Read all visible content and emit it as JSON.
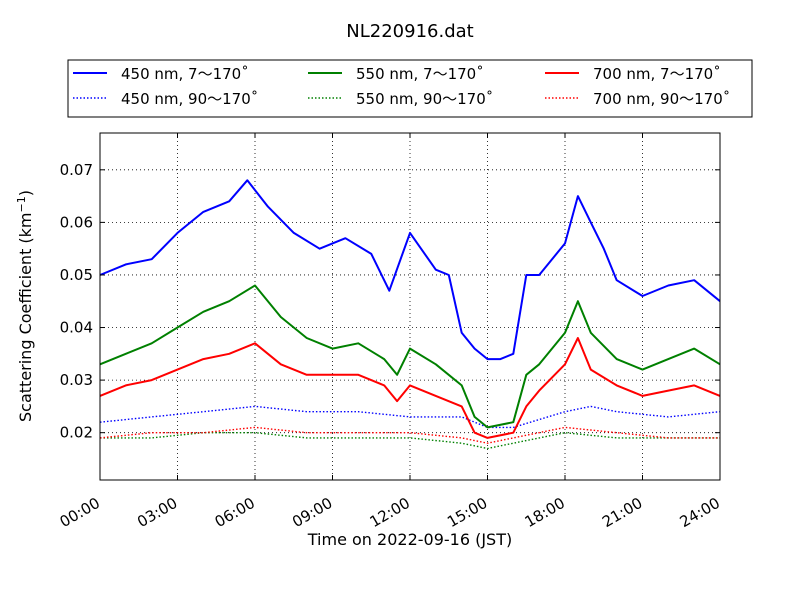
{
  "chart_data": {
    "type": "line",
    "title": "NL220916.dat",
    "xlabel": "Time on 2022-09-16 (JST)",
    "ylabel": {
      "main": "Scattering Coefficient (km",
      "sup": "−1",
      "end": ")"
    },
    "xlim": [
      "2022-09-16 00:00",
      "2022-09-17 00:00"
    ],
    "ylim": [
      0.011,
      0.077
    ],
    "x_unit": "hours since 00:00 JST",
    "x_tick_hours": [
      0,
      3,
      6,
      9,
      12,
      15,
      18,
      21,
      24
    ],
    "x_ticks": [
      "00:00",
      "03:00",
      "06:00",
      "09:00",
      "12:00",
      "15:00",
      "18:00",
      "21:00",
      "24:00"
    ],
    "y_ticks": [
      0.02,
      0.03,
      0.04,
      0.05,
      0.06,
      0.07
    ],
    "y_tick_labels": [
      "0.02",
      "0.03",
      "0.04",
      "0.05",
      "0.06",
      "0.07"
    ],
    "grid": true,
    "legend_position": "top, above plot",
    "series": [
      {
        "name": "450 nm, 7～170˚",
        "color": "#0000ff",
        "style": "solid",
        "x": [
          0,
          1,
          2,
          3,
          4,
          5,
          5.7,
          6.5,
          7.5,
          8.5,
          9.5,
          10.5,
          11.2,
          12,
          13,
          13.5,
          14,
          14.5,
          15,
          15.5,
          16,
          16.5,
          17,
          18,
          18.5,
          19,
          19.5,
          20,
          21,
          22,
          23,
          24
        ],
        "y": [
          0.05,
          0.052,
          0.053,
          0.058,
          0.062,
          0.064,
          0.068,
          0.063,
          0.058,
          0.055,
          0.057,
          0.054,
          0.047,
          0.058,
          0.051,
          0.05,
          0.039,
          0.036,
          0.034,
          0.034,
          0.035,
          0.05,
          0.05,
          0.056,
          0.065,
          0.06,
          0.055,
          0.049,
          0.046,
          0.048,
          0.049,
          0.045
        ]
      },
      {
        "name": "550 nm, 7～170˚",
        "color": "#008000",
        "style": "solid",
        "x": [
          0,
          1,
          2,
          3,
          4,
          5,
          6,
          7,
          8,
          9,
          10,
          11,
          11.5,
          12,
          13,
          14,
          14.5,
          15,
          16,
          16.5,
          17,
          18,
          18.5,
          19,
          20,
          21,
          22,
          23,
          24
        ],
        "y": [
          0.033,
          0.035,
          0.037,
          0.04,
          0.043,
          0.045,
          0.048,
          0.042,
          0.038,
          0.036,
          0.037,
          0.034,
          0.031,
          0.036,
          0.033,
          0.029,
          0.023,
          0.021,
          0.022,
          0.031,
          0.033,
          0.039,
          0.045,
          0.039,
          0.034,
          0.032,
          0.034,
          0.036,
          0.033
        ]
      },
      {
        "name": "700 nm, 7～170˚",
        "color": "#ff0000",
        "style": "solid",
        "x": [
          0,
          1,
          2,
          3,
          4,
          5,
          6,
          7,
          8,
          9,
          10,
          11,
          11.5,
          12,
          13,
          14,
          14.5,
          15,
          16,
          16.5,
          17,
          18,
          18.5,
          19,
          20,
          21,
          22,
          23,
          24
        ],
        "y": [
          0.027,
          0.029,
          0.03,
          0.032,
          0.034,
          0.035,
          0.037,
          0.033,
          0.031,
          0.031,
          0.031,
          0.029,
          0.026,
          0.029,
          0.027,
          0.025,
          0.02,
          0.019,
          0.02,
          0.025,
          0.028,
          0.033,
          0.038,
          0.032,
          0.029,
          0.027,
          0.028,
          0.029,
          0.027
        ]
      },
      {
        "name": "450 nm, 90～170˚",
        "color": "#0000ff",
        "style": "dotted",
        "x": [
          0,
          2,
          4,
          6,
          8,
          10,
          12,
          14,
          15,
          16,
          18,
          19,
          20,
          22,
          24
        ],
        "y": [
          0.022,
          0.023,
          0.024,
          0.025,
          0.024,
          0.024,
          0.023,
          0.023,
          0.021,
          0.021,
          0.024,
          0.025,
          0.024,
          0.023,
          0.024
        ]
      },
      {
        "name": "550 nm, 90～170˚",
        "color": "#008000",
        "style": "dotted",
        "x": [
          0,
          2,
          4,
          6,
          8,
          10,
          12,
          14,
          15,
          16,
          18,
          20,
          22,
          24
        ],
        "y": [
          0.019,
          0.019,
          0.02,
          0.02,
          0.019,
          0.019,
          0.019,
          0.018,
          0.017,
          0.018,
          0.02,
          0.019,
          0.019,
          0.019
        ]
      },
      {
        "name": "700 nm, 90～170˚",
        "color": "#ff0000",
        "style": "dotted",
        "x": [
          0,
          2,
          4,
          6,
          8,
          10,
          12,
          14,
          15,
          16,
          18,
          20,
          22,
          24
        ],
        "y": [
          0.019,
          0.02,
          0.02,
          0.021,
          0.02,
          0.02,
          0.02,
          0.019,
          0.018,
          0.019,
          0.021,
          0.02,
          0.019,
          0.019
        ]
      }
    ]
  }
}
